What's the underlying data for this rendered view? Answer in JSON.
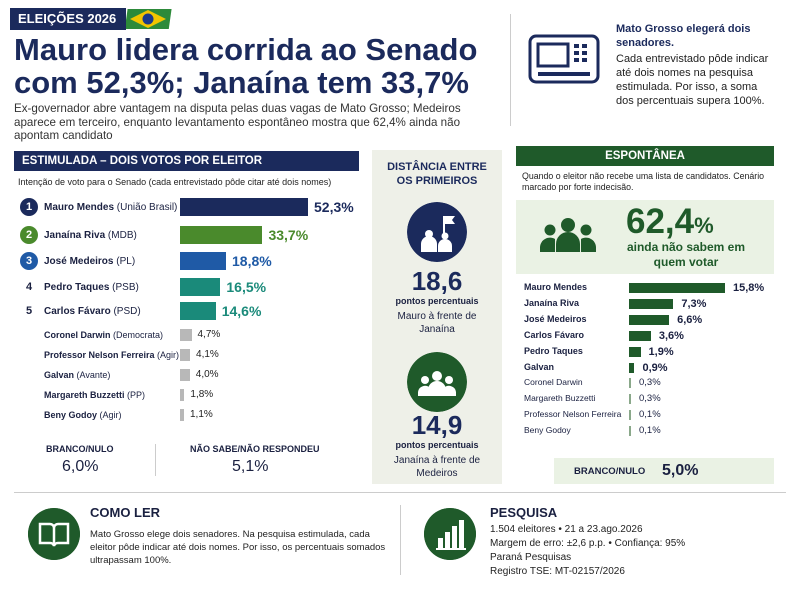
{
  "header": {
    "tag": "ELEIÇÕES 2026",
    "title_line1": "Mauro lidera corrida ao Senado",
    "title_line2": "com 52,3%; Janaína tem 33,7%",
    "subtitle": "Ex-governador abre vantagem na disputa pelas duas vagas de Mato Grosso; Medeiros aparece em terceiro, enquanto levantamento espontâneo mostra que 62,4% ainda não apontam candidato"
  },
  "info": {
    "title": "Mato Grosso elegerá dois senadores.",
    "text": "Cada entrevistado pôde indicar até dois nomes na pesquisa estimulada. Por isso, a soma dos percentuais supera 100%."
  },
  "colors": {
    "navy": "#1b2a5c",
    "green": "#4a8a2c",
    "blue": "#1f5aa6",
    "teal": "#1a8a7a",
    "gray": "#b8b8b8",
    "dark_green": "#1f5a2a"
  },
  "chart_data": [
    {
      "type": "bar",
      "title": "ESTIMULADA – DOIS VOTOS POR ELEITOR",
      "note": "Intenção de voto para o Senado (cada entrevistado pôde citar até dois nomes)",
      "xlim": [
        0,
        52.3
      ],
      "categories": [
        "Mauro Mendes",
        "Janaína Riva",
        "José Medeiros",
        "Pedro Taques",
        "Carlos Fávaro",
        "Coronel Darwin",
        "Professor Nelson Ferreira",
        "Galvan",
        "Margareth Buzzetti",
        "Beny Godoy"
      ],
      "parties": [
        "(União Brasil)",
        "(MDB)",
        "(PL)",
        "(PSB)",
        "(PSD)",
        "(Democrata)",
        "(Agir)",
        "(Avante)",
        "(PP)",
        "(Agir)"
      ],
      "ranks": [
        "1",
        "2",
        "3",
        "4",
        "5",
        "",
        "",
        "",
        "",
        ""
      ],
      "values": [
        52.3,
        33.7,
        18.8,
        16.5,
        14.6,
        4.7,
        4.1,
        4.0,
        1.8,
        1.1
      ],
      "labels": [
        "52,3%",
        "33,7%",
        "18,8%",
        "16,5%",
        "14,6%",
        "4,7%",
        "4,1%",
        "4,0%",
        "1,8%",
        "1,1%"
      ],
      "bar_colors": [
        "#1b2a5c",
        "#4a8a2c",
        "#1f5aa6",
        "#1a8a7a",
        "#1a8a7a",
        "#b8b8b8",
        "#b8b8b8",
        "#b8b8b8",
        "#b8b8b8",
        "#b8b8b8"
      ],
      "branco_nulo": {
        "label": "BRANCO/NULO",
        "value": "6,0%"
      },
      "nao_sabe": {
        "label": "NÃO SABE/NÃO RESPONDEU",
        "value": "5,1%"
      }
    },
    {
      "type": "bar",
      "title": "ESPONTÂNEA",
      "note": "Quando o eleitor não recebe uma lista de candidatos. Cenário marcado por forte indecisão.",
      "headline_value": "62,4",
      "headline_unit": "%",
      "headline_text": "ainda não sabem em quem votar",
      "xlim": [
        0,
        15.8
      ],
      "categories": [
        "Mauro Mendes",
        "Janaína Riva",
        "José Medeiros",
        "Carlos Fávaro",
        "Pedro Taques",
        "Galvan",
        "Coronel Darwin",
        "Margareth Buzzetti",
        "Professor Nelson Ferreira",
        "Beny Godoy"
      ],
      "values": [
        15.8,
        7.3,
        6.6,
        3.6,
        1.9,
        0.9,
        0.3,
        0.3,
        0.1,
        0.1
      ],
      "labels": [
        "15,8%",
        "7,3%",
        "6,6%",
        "3,6%",
        "1,9%",
        "0,9%",
        "0,3%",
        "0,3%",
        "0,1%",
        "0,1%"
      ],
      "branco_nulo": {
        "label": "BRANCO/NULO",
        "value": "5,0%"
      }
    }
  ],
  "distance": {
    "title": "DISTÂNCIA ENTRE OS PRIMEIROS",
    "first_value": "18,6",
    "first_unit": "pontos percentuais",
    "first_desc": "Mauro à frente de Janaína",
    "second_value": "14,9",
    "second_unit": "pontos percentuais",
    "second_desc": "Janaína à frente de Medeiros"
  },
  "footer": {
    "how_title": "COMO LER",
    "how_text": "Mato Grosso elege dois senadores. Na pesquisa estimulada, cada eleitor pôde indicar até dois nomes. Por isso, os percentuais somados ultrapassam 100%.",
    "poll_title": "PESQUISA",
    "poll_line1": "1.504 eleitores  •  21 a 23.ago.2026",
    "poll_line2": "Margem de erro: ±2,6 p.p.  •  Confiança: 95%",
    "poll_line3": "Paraná Pesquisas",
    "poll_line4": "Registro TSE: MT-02157/2026"
  }
}
